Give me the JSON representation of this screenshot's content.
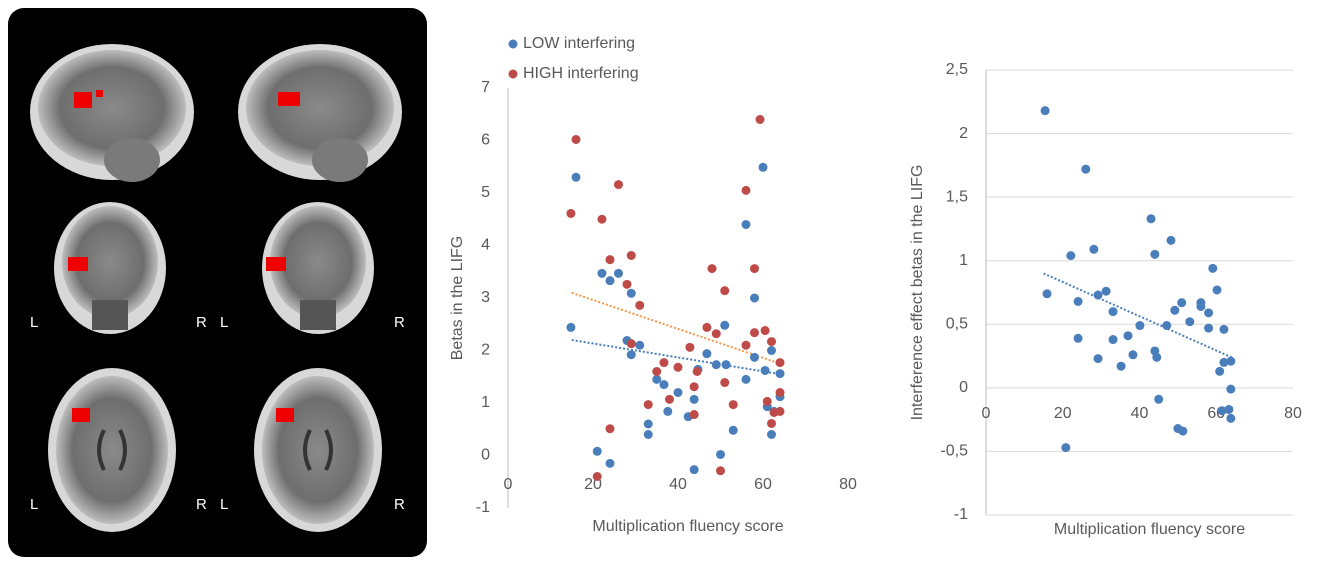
{
  "brain_images": {
    "left_label": "L",
    "right_label": "R"
  },
  "chart_data": [
    {
      "type": "scatter",
      "legend": "top-left",
      "grid": false,
      "x_label": "Multiplication fluency  score",
      "y_label": "Betas in the LIFG",
      "xlim": [
        0,
        80
      ],
      "xticks": [
        0,
        20,
        40,
        60,
        80
      ],
      "ylim": [
        -1,
        7
      ],
      "yticks": [
        -1,
        0,
        1,
        2,
        3,
        4,
        5,
        6,
        7
      ],
      "series": [
        {
          "name": "LOW interfering",
          "color": "#4a7ebb",
          "x": [
            14.8,
            16,
            21,
            22.1,
            24,
            24,
            26,
            28,
            29,
            29,
            31,
            33,
            33,
            35,
            36.7,
            37.6,
            40,
            42.4,
            43.8,
            43.8,
            44.7,
            46.8,
            49,
            50,
            51,
            51.3,
            53,
            56,
            56,
            58,
            58,
            60,
            60.5,
            61,
            62,
            62,
            62.6,
            64,
            64
          ],
          "values": [
            2.44,
            5.3,
            0.08,
            3.47,
            3.33,
            -0.15,
            3.47,
            2.19,
            1.92,
            3.09,
            2.1,
            0.6,
            0.4,
            1.45,
            1.35,
            0.84,
            1.2,
            0.74,
            1.07,
            -0.27,
            1.64,
            1.94,
            1.73,
            0.02,
            2.48,
            1.73,
            0.48,
            4.4,
            1.45,
            3.0,
            1.87,
            5.49,
            1.62,
            0.93,
            2.0,
            0.4,
            0.84,
            1.56,
            1.12
          ]
        },
        {
          "name": "HIGH interfering",
          "color": "#be4b48",
          "x": [
            14.8,
            16,
            21,
            22.1,
            24,
            24,
            26,
            28,
            29,
            29,
            31,
            33,
            35,
            36.7,
            38,
            40,
            42.8,
            43.8,
            43.8,
            44.5,
            46.8,
            48,
            49,
            50,
            51,
            51,
            53,
            56,
            56,
            58,
            58,
            59.3,
            60.5,
            61,
            62,
            62,
            62.6,
            64,
            64,
            64
          ],
          "values": [
            4.61,
            6.02,
            -0.4,
            4.5,
            3.73,
            0.51,
            5.16,
            3.26,
            3.81,
            2.13,
            2.86,
            0.97,
            1.6,
            1.77,
            1.07,
            1.68,
            2.06,
            0.78,
            1.31,
            1.6,
            2.44,
            3.56,
            2.32,
            -0.29,
            3.14,
            1.39,
            0.97,
            5.05,
            2.1,
            2.34,
            3.56,
            6.4,
            2.38,
            1.03,
            2.17,
            0.61,
            0.82,
            1.77,
            1.2,
            0.84
          ]
        }
      ],
      "trendlines": [
        {
          "color": "#4a7ebb",
          "x": [
            15,
            64
          ],
          "values": [
            2.2,
            1.55
          ]
        },
        {
          "color": "#f79646",
          "x": [
            15,
            64
          ],
          "values": [
            3.1,
            1.75
          ]
        }
      ]
    },
    {
      "type": "scatter",
      "grid": true,
      "x_label": "Multiplication fluency score",
      "y_label": "Interference effect betas in the LIFG",
      "xlim": [
        0,
        80
      ],
      "xticks": [
        0,
        20,
        40,
        60,
        80
      ],
      "ylim": [
        -1,
        2.5
      ],
      "yticks": [
        -1,
        {
          "value": -0.5,
          "label": "-0,5"
        },
        0,
        {
          "value": 0.5,
          "label": "0,5"
        },
        1,
        {
          "value": 1.5,
          "label": "1,5"
        },
        2,
        {
          "value": 2.5,
          "label": "2,5"
        }
      ],
      "series": [
        {
          "color": "#4a7ebb",
          "x": [
            15.4,
            15.9,
            22.1,
            20.8,
            24,
            24,
            26,
            28.1,
            29.2,
            29.2,
            31.3,
            33.1,
            33.1,
            35.2,
            37,
            38.3,
            40.1,
            43,
            44,
            44,
            44.5,
            45,
            47.1,
            48.2,
            49.2,
            50,
            51,
            51.3,
            53.1,
            56,
            56,
            58,
            58,
            59.1,
            60.2,
            60.9,
            61.5,
            62,
            62,
            63.3,
            63.8,
            63.8,
            63.8
          ],
          "values": [
            2.18,
            0.74,
            1.04,
            -0.47,
            0.68,
            0.39,
            1.72,
            1.09,
            0.73,
            0.23,
            0.76,
            0.38,
            0.6,
            0.17,
            0.41,
            0.26,
            0.49,
            1.33,
            1.05,
            0.29,
            0.24,
            -0.09,
            0.49,
            1.16,
            0.61,
            -0.32,
            0.67,
            -0.34,
            0.52,
            0.67,
            0.64,
            0.47,
            0.59,
            0.94,
            0.77,
            0.13,
            -0.18,
            0.2,
            0.46,
            -0.17,
            0.21,
            -0.01,
            -0.24
          ]
        }
      ],
      "trendlines": [
        {
          "color": "#4a7ebb",
          "x": [
            15,
            64
          ],
          "values": [
            0.9,
            0.24
          ]
        }
      ]
    }
  ]
}
